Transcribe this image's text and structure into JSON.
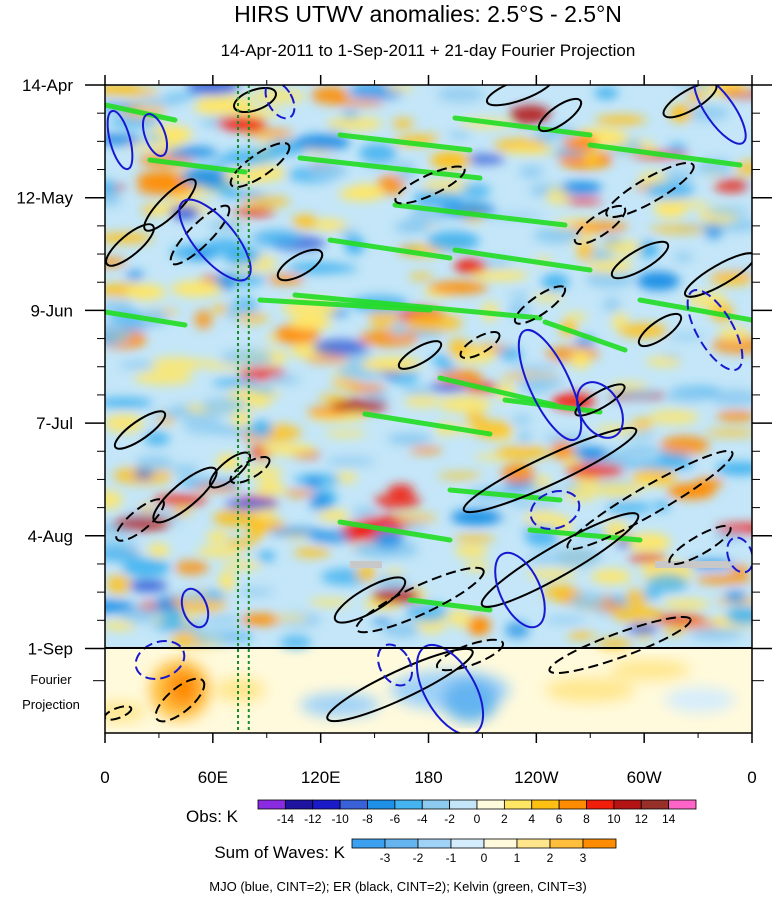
{
  "chart_data": {
    "type": "heatmap",
    "title": "HIRS UTWV anomalies: 2.5°S - 2.5°N",
    "subtitle": "14-Apr-2011 to 1-Sep-2011 + 21-day Fourier Projection",
    "x_tick_labels": [
      "0",
      "60E",
      "120E",
      "180",
      "120W",
      "60W",
      "0"
    ],
    "x_range_degrees_east": [
      0,
      360
    ],
    "y_tick_labels": [
      "14-Apr",
      "12-May",
      "9-Jun",
      "7-Jul",
      "4-Aug",
      "1-Sep"
    ],
    "y_range": [
      "2011-04-14",
      "2011-09-22"
    ],
    "projection_label_lines": [
      "Fourier",
      "Projection"
    ],
    "observation_end": "2011-09-01",
    "obs_colorbar": {
      "label": "Obs: K",
      "levels": [
        "-14",
        "-12",
        "-10",
        "-8",
        "-6",
        "-4",
        "-2",
        "0",
        "2",
        "4",
        "6",
        "8",
        "10",
        "12",
        "14"
      ],
      "colors": [
        "#8a2be2",
        "#1e14a0",
        "#1a1ac8",
        "#3a62d8",
        "#1e90e6",
        "#46b4f0",
        "#8ccaf0",
        "#c4e6f8",
        "#fffadc",
        "#ffe664",
        "#ffc014",
        "#ff8c00",
        "#f01e0a",
        "#b41414",
        "#963028",
        "#ff64c8"
      ]
    },
    "waves_colorbar": {
      "label": "Sum of Waves: K",
      "levels": [
        "-3",
        "-2",
        "-1",
        "0",
        "1",
        "2",
        "3"
      ],
      "colors": [
        "#3ca0f0",
        "#64b4f0",
        "#a0d2f8",
        "#d4ecfc",
        "#fffadc",
        "#ffe68c",
        "#ffbe3c",
        "#ff8c00"
      ]
    },
    "footer": "MJO (blue, CINT=2); ER (black, CINT=2); Kelvin (green, CINT=3)",
    "contour_colors": {
      "mjo": "#1818d0",
      "er": "#000000",
      "kelvin": "#22dd22"
    },
    "reference_lines": {
      "longitudes_E": [
        74,
        80
      ],
      "color": "#1a8a2a",
      "style": "dotted"
    }
  }
}
